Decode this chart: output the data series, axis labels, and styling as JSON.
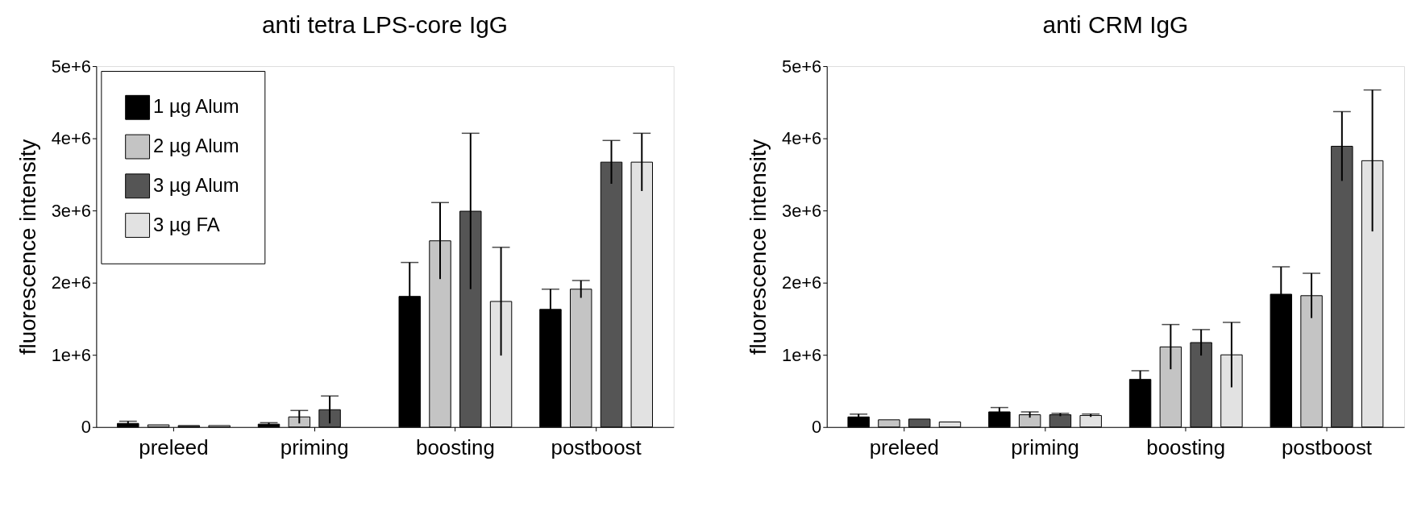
{
  "chart_data": [
    {
      "type": "bar",
      "title": "anti tetra LPS-core IgG",
      "ylabel": "fluorescence intensity",
      "categories": [
        "preleed",
        "priming",
        "boosting",
        "postboost"
      ],
      "series": [
        {
          "name": "1 µg Alum",
          "color": "#000000",
          "values": [
            50000,
            40000,
            1810000,
            1630000
          ],
          "errors": [
            30000,
            20000,
            470000,
            280000
          ]
        },
        {
          "name": "2 µg Alum",
          "color": "#c4c4c4",
          "values": [
            30000,
            140000,
            2580000,
            1910000
          ],
          "errors": [
            null,
            90000,
            530000,
            120000
          ]
        },
        {
          "name": "3 µg Alum",
          "color": "#555555",
          "values": [
            20000,
            240000,
            2990000,
            3670000
          ],
          "errors": [
            null,
            190000,
            1080000,
            300000
          ]
        },
        {
          "name": "3 µg FA",
          "color": "#e2e2e2",
          "values": [
            20000,
            null,
            1740000,
            3670000
          ],
          "errors": [
            null,
            null,
            750000,
            400000
          ]
        }
      ],
      "ylim": [
        0,
        5000000
      ],
      "yticks": [
        0,
        {
          "value": 1000000,
          "label": "1e+6"
        },
        {
          "value": 2000000,
          "label": "2e+6"
        },
        {
          "value": 3000000,
          "label": "3e+6"
        },
        {
          "value": 4000000,
          "label": "4e+6"
        },
        {
          "value": 5000000,
          "label": "5e+6"
        }
      ],
      "legend": "top left",
      "grid": false
    },
    {
      "type": "bar",
      "title": "anti CRM IgG",
      "ylabel": "fluorescence intensity",
      "categories": [
        "preleed",
        "priming",
        "boosting",
        "postboost"
      ],
      "series": [
        {
          "color": "#000000",
          "values": [
            140000,
            210000,
            660000,
            1840000
          ],
          "errors": [
            40000,
            60000,
            120000,
            380000
          ]
        },
        {
          "color": "#c4c4c4",
          "values": [
            100000,
            170000,
            1110000,
            1820000
          ],
          "errors": [
            null,
            40000,
            310000,
            310000
          ]
        },
        {
          "color": "#555555",
          "values": [
            110000,
            170000,
            1170000,
            3890000
          ],
          "errors": [
            null,
            20000,
            180000,
            480000
          ]
        },
        {
          "color": "#e2e2e2",
          "values": [
            70000,
            160000,
            1000000,
            3690000
          ],
          "errors": [
            null,
            20000,
            450000,
            980000
          ]
        }
      ],
      "ylim": [
        0,
        5000000
      ],
      "yticks": [
        0,
        {
          "value": 1000000,
          "label": "1e+6"
        },
        {
          "value": 2000000,
          "label": "2e+6"
        },
        {
          "value": 3000000,
          "label": "3e+6"
        },
        {
          "value": 4000000,
          "label": "4e+6"
        },
        {
          "value": 5000000,
          "label": "5e+6"
        }
      ],
      "legend": false,
      "grid": false
    }
  ]
}
